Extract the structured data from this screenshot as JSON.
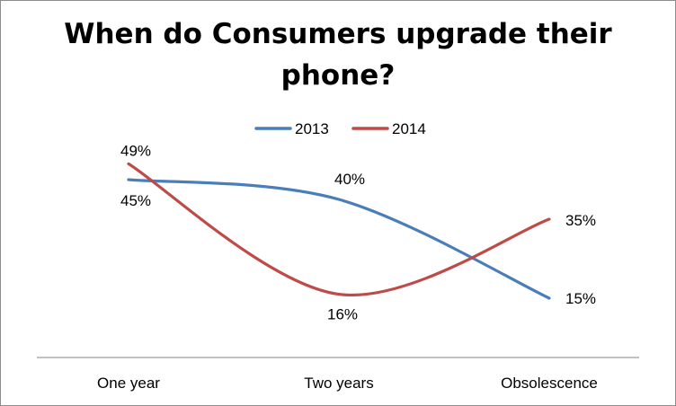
{
  "chart_data": {
    "type": "line",
    "title_lines": [
      "When do Consumers upgrade their",
      "phone?"
    ],
    "categories": [
      "One year",
      "Two years",
      "Obsolescence"
    ],
    "series": [
      {
        "name": "2013",
        "values": [
          45,
          40,
          15
        ],
        "labels": [
          "45%",
          "40%",
          "15%"
        ],
        "color": "#4A7EBB"
      },
      {
        "name": "2014",
        "values": [
          49,
          16,
          35
        ],
        "labels": [
          "49%",
          "16%",
          "35%"
        ],
        "color": "#BE4B48"
      }
    ],
    "smoothed": true,
    "legend": "top",
    "grid": false,
    "yaxis_visible": false
  }
}
